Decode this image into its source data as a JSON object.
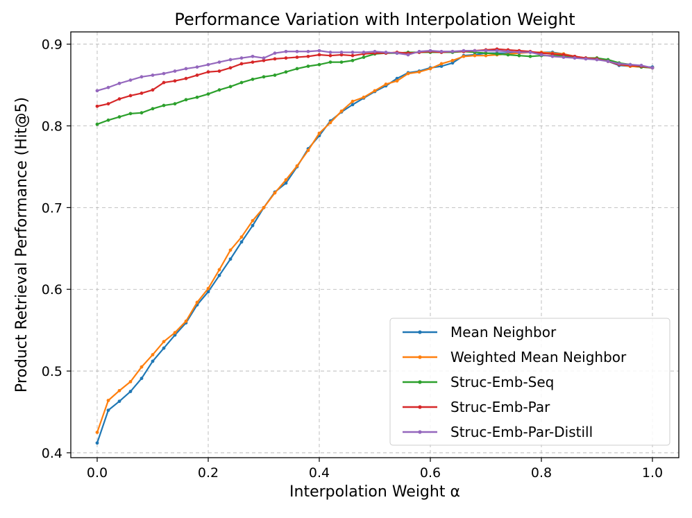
{
  "chart_data": {
    "type": "line",
    "title": "Performance Variation with Interpolation Weight",
    "xlabel": "Interpolation Weight α",
    "ylabel": "Product Retrieval Performance (Hit@5)",
    "xlim": [
      -0.0475,
      1.0475
    ],
    "ylim": [
      0.394,
      0.915
    ],
    "xticks": [
      0.0,
      0.2,
      0.4,
      0.6,
      0.8,
      1.0
    ],
    "xtick_labels": [
      "0.0",
      "0.2",
      "0.4",
      "0.6",
      "0.8",
      "1.0"
    ],
    "yticks": [
      0.4,
      0.5,
      0.6,
      0.7,
      0.8,
      0.9
    ],
    "ytick_labels": [
      "0.4",
      "0.5",
      "0.6",
      "0.7",
      "0.8",
      "0.9"
    ],
    "grid": true,
    "legend_position": "lower-right",
    "x": [
      0.0,
      0.02,
      0.04,
      0.06,
      0.08,
      0.1,
      0.12,
      0.14,
      0.16,
      0.18,
      0.2,
      0.22,
      0.24,
      0.26,
      0.28,
      0.3,
      0.32,
      0.34,
      0.36,
      0.38,
      0.4,
      0.42,
      0.44,
      0.46,
      0.48,
      0.5,
      0.52,
      0.54,
      0.56,
      0.58,
      0.6,
      0.62,
      0.64,
      0.66,
      0.68,
      0.7,
      0.72,
      0.74,
      0.76,
      0.78,
      0.8,
      0.82,
      0.84,
      0.86,
      0.88,
      0.9,
      0.92,
      0.94,
      0.96,
      0.98,
      1.0
    ],
    "series": [
      {
        "name": "Mean Neighbor",
        "color": "#1f77b4",
        "values": [
          0.412,
          0.452,
          0.463,
          0.475,
          0.491,
          0.512,
          0.528,
          0.544,
          0.559,
          0.581,
          0.597,
          0.617,
          0.637,
          0.658,
          0.678,
          0.7,
          0.719,
          0.73,
          0.75,
          0.772,
          0.788,
          0.806,
          0.817,
          0.826,
          0.834,
          0.842,
          0.849,
          0.858,
          0.865,
          0.867,
          0.871,
          0.873,
          0.877,
          0.886,
          0.887,
          0.889,
          0.889,
          0.889,
          0.89,
          0.89,
          0.89,
          0.89,
          0.888,
          0.885,
          0.883,
          0.883,
          0.879,
          0.874,
          0.873,
          0.872,
          0.872
        ]
      },
      {
        "name": "Weighted Mean Neighbor",
        "color": "#ff7f0e",
        "values": [
          0.425,
          0.464,
          0.476,
          0.487,
          0.505,
          0.52,
          0.536,
          0.547,
          0.561,
          0.584,
          0.601,
          0.624,
          0.648,
          0.664,
          0.684,
          0.7,
          0.718,
          0.734,
          0.751,
          0.77,
          0.791,
          0.804,
          0.818,
          0.83,
          0.835,
          0.843,
          0.851,
          0.855,
          0.864,
          0.866,
          0.87,
          0.876,
          0.88,
          0.885,
          0.886,
          0.886,
          0.887,
          0.888,
          0.889,
          0.89,
          0.89,
          0.889,
          0.888,
          0.885,
          0.883,
          0.883,
          0.879,
          0.875,
          0.873,
          0.872,
          0.871
        ]
      },
      {
        "name": "Struc-Emb-Seq",
        "color": "#2ca02c",
        "values": [
          0.802,
          0.807,
          0.811,
          0.815,
          0.816,
          0.821,
          0.825,
          0.827,
          0.832,
          0.835,
          0.839,
          0.844,
          0.848,
          0.853,
          0.857,
          0.86,
          0.862,
          0.866,
          0.87,
          0.873,
          0.875,
          0.878,
          0.878,
          0.88,
          0.884,
          0.888,
          0.889,
          0.889,
          0.89,
          0.89,
          0.89,
          0.89,
          0.89,
          0.891,
          0.89,
          0.889,
          0.888,
          0.887,
          0.886,
          0.885,
          0.886,
          0.886,
          0.886,
          0.884,
          0.883,
          0.883,
          0.881,
          0.877,
          0.875,
          0.872,
          0.871
        ]
      },
      {
        "name": "Struc-Emb-Par",
        "color": "#d62728",
        "values": [
          0.824,
          0.827,
          0.833,
          0.837,
          0.84,
          0.844,
          0.853,
          0.855,
          0.858,
          0.862,
          0.866,
          0.867,
          0.871,
          0.876,
          0.878,
          0.88,
          0.882,
          0.883,
          0.884,
          0.885,
          0.887,
          0.886,
          0.887,
          0.886,
          0.888,
          0.889,
          0.889,
          0.89,
          0.889,
          0.89,
          0.891,
          0.89,
          0.891,
          0.891,
          0.892,
          0.893,
          0.894,
          0.893,
          0.892,
          0.891,
          0.889,
          0.888,
          0.887,
          0.885,
          0.883,
          0.882,
          0.879,
          0.875,
          0.874,
          0.873,
          0.871
        ]
      },
      {
        "name": "Struc-Emb-Par-Distill",
        "color": "#9467bd",
        "values": [
          0.843,
          0.847,
          0.852,
          0.856,
          0.86,
          0.862,
          0.864,
          0.867,
          0.87,
          0.872,
          0.875,
          0.878,
          0.881,
          0.883,
          0.885,
          0.883,
          0.889,
          0.891,
          0.891,
          0.891,
          0.892,
          0.89,
          0.89,
          0.89,
          0.89,
          0.891,
          0.89,
          0.889,
          0.887,
          0.891,
          0.892,
          0.891,
          0.891,
          0.892,
          0.892,
          0.892,
          0.892,
          0.891,
          0.89,
          0.89,
          0.887,
          0.885,
          0.884,
          0.883,
          0.882,
          0.881,
          0.879,
          0.876,
          0.875,
          0.874,
          0.871
        ]
      }
    ]
  }
}
